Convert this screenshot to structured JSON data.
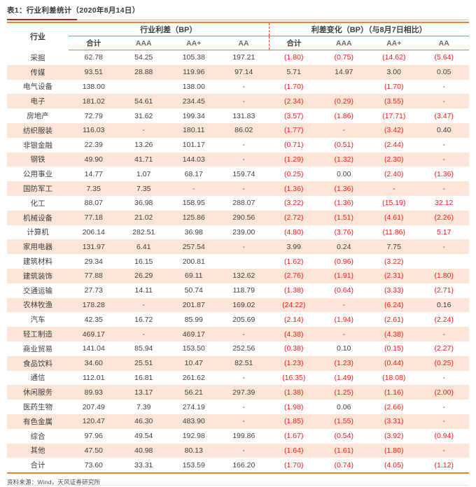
{
  "title": "表1：行业利差统计（2020年8月14日）",
  "footer": {
    "source": "资料来源：Wind，天风证券研究所"
  },
  "colors": {
    "accent_orange": "#ED7D31",
    "alt_row_bg": "#FBE5D6",
    "negative_red": "#FB1B10",
    "divider_dash_red": "#FF3A1E",
    "title_underline_red": "#A5281B",
    "body_text": "#404040",
    "subheader_gray": "#6B6B6B"
  },
  "table": {
    "industry_header": "行业",
    "group_headers": [
      "行业利差（BP）",
      "利差变化（BP）（与8月7日相比）"
    ],
    "sub_headers": [
      "合计",
      "AAA",
      "AA+",
      "AA"
    ],
    "note_negatives_in_parentheses_red": true,
    "red_overrides": [
      [
        10,
        3
      ],
      [
        12,
        3
      ]
    ],
    "rows": [
      {
        "industry": "采掘",
        "spread": [
          "62.78",
          "54.25",
          "105.38",
          "197.21"
        ],
        "change": [
          "(1.80)",
          "(0.75)",
          "(14.62)",
          "(5.64)"
        ]
      },
      {
        "industry": "传媒",
        "spread": [
          "93.51",
          "28.88",
          "119.96",
          "97.14"
        ],
        "change": [
          "5.71",
          "14.97",
          "3.00",
          "0.05"
        ]
      },
      {
        "industry": "电气设备",
        "spread": [
          "138.00",
          "",
          "138.00",
          "-"
        ],
        "change": [
          "(1.70)",
          "",
          "(1.70)",
          "-"
        ]
      },
      {
        "industry": "电子",
        "spread": [
          "181.02",
          "54.61",
          "234.45",
          "-"
        ],
        "change": [
          "(2.34)",
          "(0.29)",
          "(3.55)",
          "-"
        ]
      },
      {
        "industry": "房地产",
        "spread": [
          "72.79",
          "31.62",
          "199.34",
          "131.83"
        ],
        "change": [
          "(3.57)",
          "(1.86)",
          "(17.71)",
          "(3.47)"
        ]
      },
      {
        "industry": "纺织服装",
        "spread": [
          "116.03",
          "-",
          "180.11",
          "86.02"
        ],
        "change": [
          "(1.77)",
          "-",
          "(3.42)",
          "0.40"
        ]
      },
      {
        "industry": "非银金融",
        "spread": [
          "22.39",
          "13.26",
          "101.17",
          "-"
        ],
        "change": [
          "(0.71)",
          "(0.51)",
          "(2.44)",
          "-"
        ]
      },
      {
        "industry": "钢铁",
        "spread": [
          "49.90",
          "41.71",
          "144.03",
          "-"
        ],
        "change": [
          "(1.29)",
          "(1.32)",
          "(2.30)",
          "-"
        ]
      },
      {
        "industry": "公用事业",
        "spread": [
          "14.77",
          "1.07",
          "68.17",
          "159.74"
        ],
        "change": [
          "(0.25)",
          "0.00",
          "(2.40)",
          "(1.36)"
        ]
      },
      {
        "industry": "国防军工",
        "spread": [
          "7.35",
          "7.35",
          "-",
          "-"
        ],
        "change": [
          "(1.36)",
          "(1.36)",
          "-",
          "-"
        ]
      },
      {
        "industry": "化工",
        "spread": [
          "88.07",
          "36.98",
          "158.95",
          "288.07"
        ],
        "change": [
          "(3.22)",
          "(1.36)",
          "(15.19)",
          "32.12"
        ]
      },
      {
        "industry": "机械设备",
        "spread": [
          "77.18",
          "21.02",
          "125.86",
          "290.56"
        ],
        "change": [
          "(2.72)",
          "(1.51)",
          "(4.61)",
          "(2.26)"
        ]
      },
      {
        "industry": "计算机",
        "spread": [
          "206.14",
          "282.51",
          "36.98",
          "239.00"
        ],
        "change": [
          "(4.80)",
          "(3.76)",
          "(11.86)",
          "5.17"
        ]
      },
      {
        "industry": "家用电器",
        "spread": [
          "131.97",
          "6.41",
          "257.54",
          "-"
        ],
        "change": [
          "3.99",
          "0.24",
          "7.75",
          "-"
        ]
      },
      {
        "industry": "建筑材料",
        "spread": [
          "29.34",
          "16.15",
          "200.81",
          ""
        ],
        "change": [
          "(1.62)",
          "(0.96)",
          "(3.22)",
          ""
        ]
      },
      {
        "industry": "建筑装饰",
        "spread": [
          "77.88",
          "26.29",
          "69.11",
          "132.62"
        ],
        "change": [
          "(2.76)",
          "(1.91)",
          "(2.31)",
          "(1.80)"
        ]
      },
      {
        "industry": "交通运输",
        "spread": [
          "27.73",
          "14.11",
          "50.74",
          "118.79"
        ],
        "change": [
          "(1.38)",
          "(0.64)",
          "(3.33)",
          "(2.71)"
        ]
      },
      {
        "industry": "农林牧渔",
        "spread": [
          "178.28",
          "-",
          "201.87",
          "169.02"
        ],
        "change": [
          "(24.22)",
          "-",
          "(6.24)",
          "0.16"
        ]
      },
      {
        "industry": "汽车",
        "spread": [
          "42.35",
          "16.72",
          "85.99",
          "205.69"
        ],
        "change": [
          "(2.14)",
          "(1.94)",
          "(2.61)",
          "(2.24)"
        ]
      },
      {
        "industry": "轻工制造",
        "spread": [
          "469.17",
          "-",
          "469.17",
          "-"
        ],
        "change": [
          "(4.38)",
          "-",
          "(4.38)",
          "-"
        ]
      },
      {
        "industry": "商业贸易",
        "spread": [
          "141.04",
          "85.94",
          "153.50",
          "252.56"
        ],
        "change": [
          "(0.38)",
          "0.10",
          "(0.15)",
          "(2.27)"
        ]
      },
      {
        "industry": "食品饮料",
        "spread": [
          "34.60",
          "25.51",
          "10.47",
          "82.51"
        ],
        "change": [
          "(1.23)",
          "(1.23)",
          "(0.44)",
          "(0.25)"
        ]
      },
      {
        "industry": "通信",
        "spread": [
          "112.01",
          "16.81",
          "261.62",
          "-"
        ],
        "change": [
          "(16.35)",
          "(1.49)",
          "(18.08)",
          "-"
        ]
      },
      {
        "industry": "休闲服务",
        "spread": [
          "89.93",
          "13.17",
          "56.21",
          "297.39"
        ],
        "change": [
          "(1.38)",
          "(1.25)",
          "(1.16)",
          "(2.00)"
        ]
      },
      {
        "industry": "医药生物",
        "spread": [
          "207.49",
          "7.39",
          "274.19",
          "-"
        ],
        "change": [
          "(1.98)",
          "0.06",
          "(2.66)",
          "-"
        ]
      },
      {
        "industry": "有色金属",
        "spread": [
          "120.47",
          "46.30",
          "483.90",
          "-"
        ],
        "change": [
          "(1.85)",
          "(1.55)",
          "(3.31)",
          "-"
        ]
      },
      {
        "industry": "综合",
        "spread": [
          "97.96",
          "49.54",
          "192.98",
          "199.86"
        ],
        "change": [
          "(1.67)",
          "(0.54)",
          "(3.92)",
          "(0.94)"
        ]
      },
      {
        "industry": "其他",
        "spread": [
          "47.50",
          "40.98",
          "80.13",
          "-"
        ],
        "change": [
          "(1.64)",
          "(1.61)",
          "(1.80)",
          "-"
        ]
      },
      {
        "industry": "合计",
        "spread": [
          "73.60",
          "33.31",
          "153.59",
          "166.20"
        ],
        "change": [
          "(1.70)",
          "(0.74)",
          "(4.05)",
          "(1.12)"
        ]
      }
    ]
  }
}
